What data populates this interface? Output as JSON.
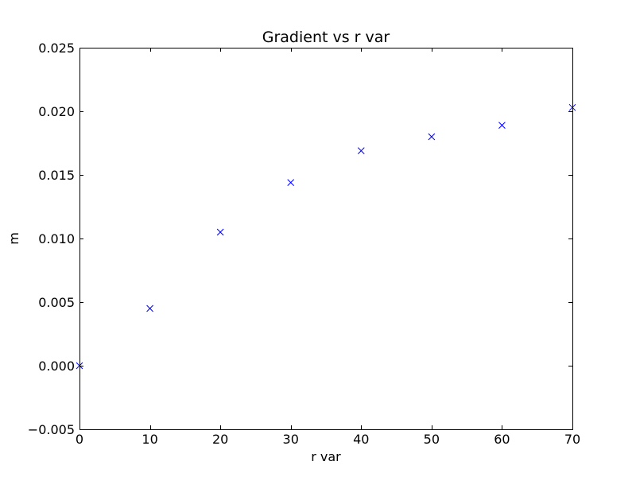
{
  "chart_data": {
    "type": "scatter",
    "title": "Gradient vs r var",
    "xlabel": "r var",
    "ylabel": "m",
    "xlim": [
      0,
      70
    ],
    "ylim": [
      -0.005,
      0.025
    ],
    "xticks": [
      0,
      10,
      20,
      30,
      40,
      50,
      60,
      70
    ],
    "xtick_labels": [
      "0",
      "10",
      "20",
      "30",
      "40",
      "50",
      "60",
      "70"
    ],
    "yticks": [
      -0.005,
      0.0,
      0.005,
      0.01,
      0.015,
      0.02,
      0.025
    ],
    "ytick_labels": [
      "−0.005",
      "0.000",
      "0.005",
      "0.010",
      "0.015",
      "0.020",
      "0.025"
    ],
    "grid": false,
    "marker": "x",
    "series": [
      {
        "color": "#0000ff",
        "x": [
          0,
          10,
          20,
          30,
          40,
          50,
          60,
          70
        ],
        "y": [
          0.0,
          0.0045,
          0.0105,
          0.0144,
          0.0169,
          0.018,
          0.0189,
          0.0203
        ]
      }
    ]
  }
}
